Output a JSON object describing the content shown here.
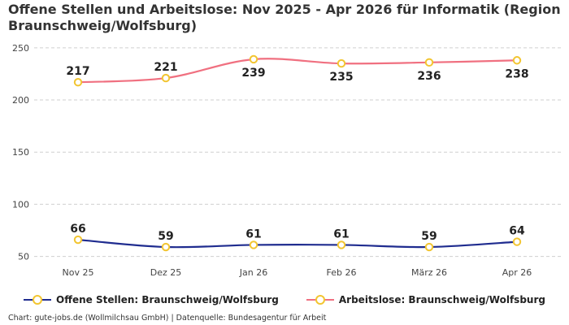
{
  "chart_data": {
    "type": "line",
    "title": "Offene Stellen und Arbeitslose: Nov 2025 - Apr 2026 für Informatik (Region Braunschweig/Wolfsburg)",
    "categories": [
      "Nov 25",
      "Dez 25",
      "Jan 26",
      "Feb 26",
      "März 26",
      "Apr 26"
    ],
    "y_ticks": [
      50,
      100,
      150,
      200,
      250
    ],
    "ylim": [
      45,
      253
    ],
    "grid": true,
    "legend_position": "bottom",
    "marker_color": "#f2c531",
    "series": [
      {
        "name": "Offene Stellen: Braunschweig/Wolfsburg",
        "color": "#1f2c8f",
        "values": [
          66,
          59,
          61,
          61,
          59,
          64
        ]
      },
      {
        "name": "Arbeitslose: Braunschweig/Wolfsburg",
        "color": "#f07080",
        "values": [
          217,
          221,
          239,
          235,
          236,
          238
        ]
      }
    ]
  },
  "footer": {
    "source": "Chart: gute-jobs.de (Wollmilchsau GmbH) | Datenquelle: Bundesagentur für Arbeit"
  }
}
